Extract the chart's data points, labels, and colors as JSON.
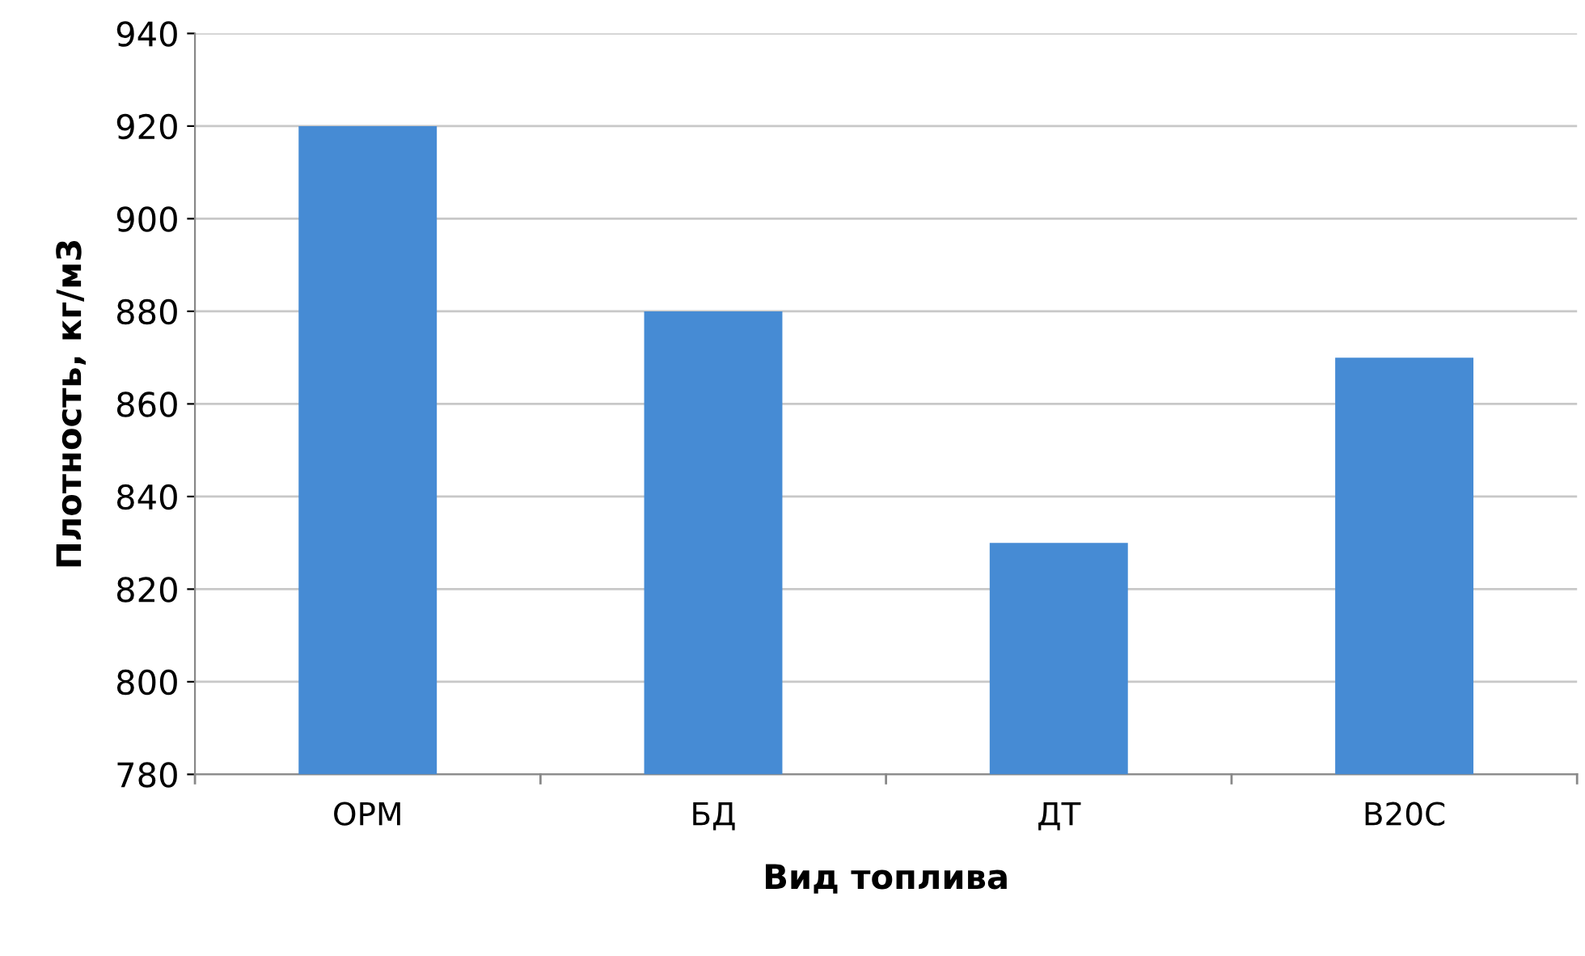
{
  "chart_data": {
    "type": "bar",
    "xlabel": "Вид топлива",
    "ylabel": "Плотность, кг/м3",
    "categories": [
      "ОРМ",
      "БД",
      "ДТ",
      "В20С"
    ],
    "values": [
      920,
      880,
      830,
      870
    ],
    "color": "#468bd4",
    "ylim": [
      780,
      940
    ],
    "yticks": [
      780,
      800,
      820,
      840,
      860,
      880,
      900,
      920,
      940
    ],
    "grid": "y",
    "legend": false
  }
}
